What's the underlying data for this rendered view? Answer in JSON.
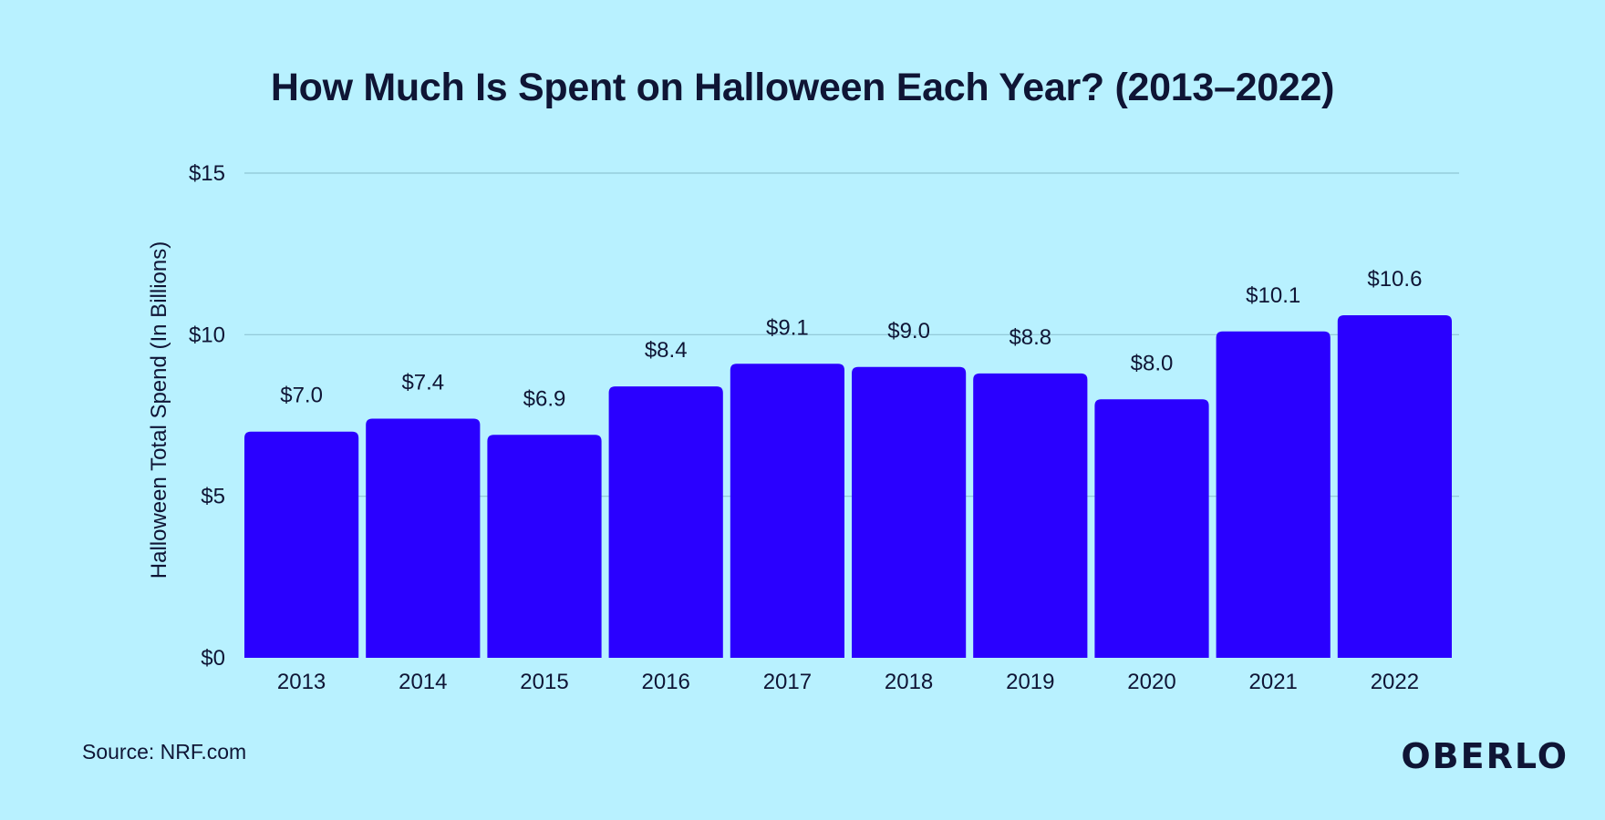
{
  "footer": {
    "source": "Source: NRF.com",
    "brand": "OBERLO"
  },
  "colors": {
    "background": "#b8f1ff",
    "bar": "#2a00ff",
    "text": "#0f1535",
    "grid": "#8fc5d4"
  },
  "chart_data": {
    "type": "bar",
    "title": "How Much Is Spent on Halloween Each Year? (2013–2022)",
    "xlabel": "",
    "ylabel": "Halloween Total Spend (In Billions)",
    "categories": [
      "2013",
      "2014",
      "2015",
      "2016",
      "2017",
      "2018",
      "2019",
      "2020",
      "2021",
      "2022"
    ],
    "values": [
      7.0,
      7.4,
      6.9,
      8.4,
      9.1,
      9.0,
      8.8,
      8.0,
      10.1,
      10.6
    ],
    "value_labels": [
      "$7.0",
      "$7.4",
      "$6.9",
      "$8.4",
      "$9.1",
      "$9.0",
      "$8.8",
      "$8.0",
      "$10.1",
      "$10.6"
    ],
    "ylim": [
      0,
      15
    ],
    "yticks": [
      0,
      5,
      10,
      15
    ],
    "ytick_labels": [
      "$0",
      "$5",
      "$10",
      "$15"
    ],
    "grid": true,
    "legend": "none"
  }
}
